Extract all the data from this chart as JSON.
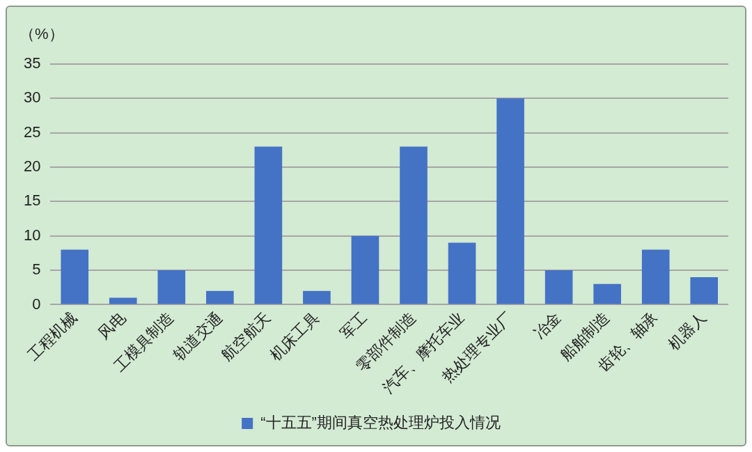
{
  "chart_data": {
    "type": "bar",
    "ylabel": "（%）",
    "categories": [
      "工程机械",
      "风电",
      "工模具制造",
      "轨道交通",
      "航空航天",
      "机床工具",
      "军工",
      "零部件制造",
      "汽车、摩托车业",
      "热处理专业厂",
      "冶金",
      "船舶制造",
      "齿轮、轴承",
      "机器人"
    ],
    "series": [
      {
        "name": "“十五五”期间真空热处理炉投入情况",
        "color": "#4472c4",
        "values": [
          8,
          1,
          5,
          2,
          23,
          2,
          10,
          23,
          9,
          30,
          5,
          3,
          8,
          4
        ]
      }
    ],
    "ylim": [
      0,
      35
    ],
    "yticks": [
      0,
      5,
      10,
      15,
      20,
      25,
      30,
      35
    ],
    "grid": "y",
    "legend": "bottom"
  }
}
